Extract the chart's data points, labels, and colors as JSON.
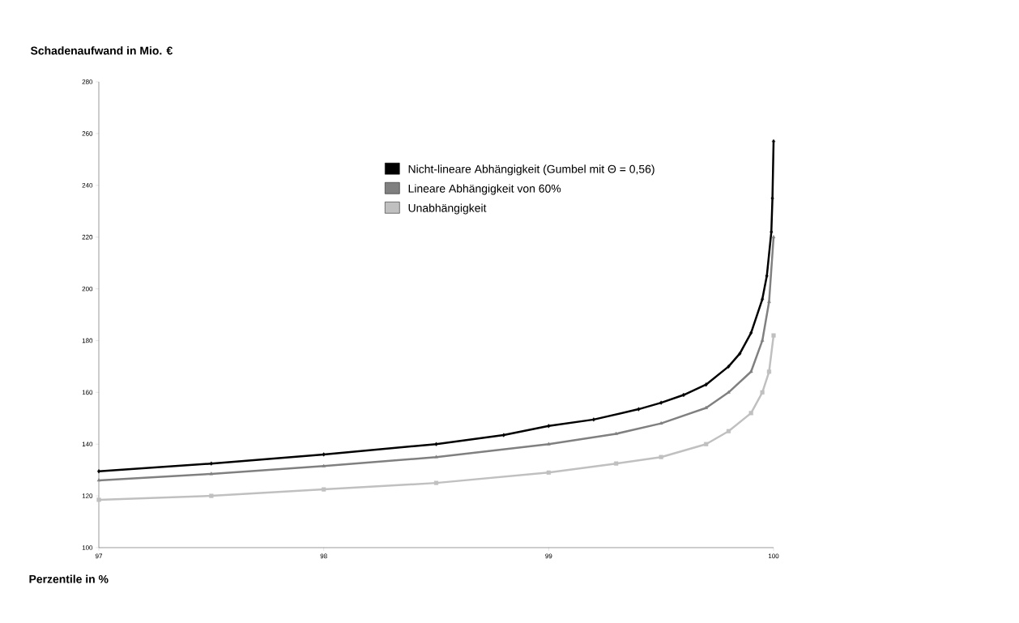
{
  "chart_data": {
    "type": "line",
    "xlabel": "Perzentile in %",
    "ylabel": "Schadenaufwand in Mio. €",
    "xlim": [
      97,
      100
    ],
    "xticks": [
      97,
      98,
      99,
      100
    ],
    "ylim": [
      100,
      280
    ],
    "yticks": [
      100,
      120,
      140,
      160,
      180,
      200,
      220,
      240,
      260,
      280
    ],
    "grid": false,
    "legend": "top",
    "line_style": "solid",
    "series": [
      {
        "name": "Nicht-lineare Abhängigkeit (Gumbel mit Θ = 0,56)",
        "color": "#000000",
        "marker": "diamond",
        "x": [
          97,
          97.5,
          98,
          98.5,
          98.8,
          99,
          99.2,
          99.4,
          99.5,
          99.6,
          99.7,
          99.8,
          99.85,
          99.9,
          99.95,
          99.97,
          99.99,
          99.995,
          100
        ],
        "values": [
          129.5,
          132.5,
          136,
          140,
          143.5,
          147,
          149.5,
          153.5,
          156,
          159,
          163,
          170,
          175,
          183,
          196,
          205,
          222,
          235,
          257
        ]
      },
      {
        "name": "Lineare Abhängigkeit von 60%",
        "color": "#808080",
        "marker": "triangle",
        "x": [
          97,
          97.5,
          98,
          98.5,
          99,
          99.3,
          99.5,
          99.7,
          99.8,
          99.9,
          99.95,
          99.98,
          100
        ],
        "values": [
          126,
          128.5,
          131.5,
          135,
          140,
          144,
          148,
          154,
          160,
          168,
          180,
          195,
          220
        ]
      },
      {
        "name": "Unabhängigkeit",
        "color": "#c0c0c0",
        "marker": "square",
        "x": [
          97,
          97.5,
          98,
          98.5,
          99,
          99.3,
          99.5,
          99.7,
          99.8,
          99.9,
          99.95,
          99.98,
          100
        ],
        "values": [
          118.5,
          120,
          122.5,
          125,
          129,
          132.5,
          135,
          140,
          145,
          152,
          160,
          168,
          182
        ]
      }
    ]
  }
}
